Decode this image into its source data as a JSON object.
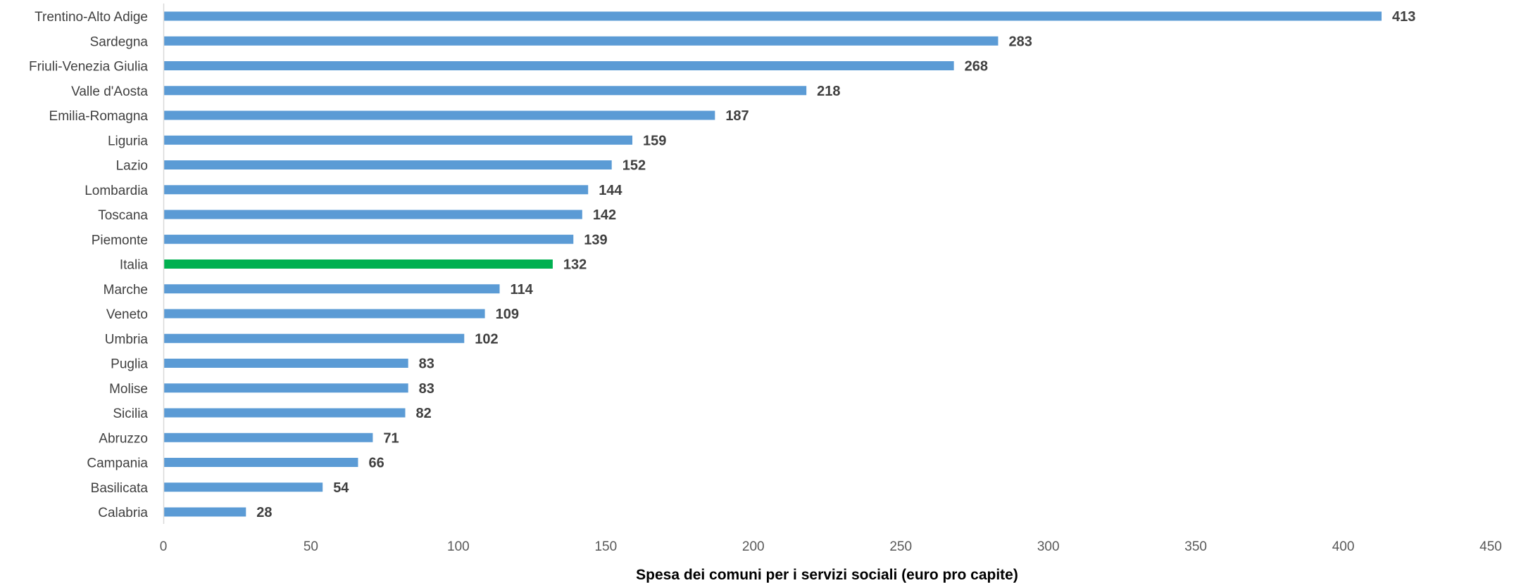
{
  "chart_data": {
    "type": "bar",
    "orientation": "horizontal",
    "categories": [
      "Trentino-Alto Adige",
      "Sardegna",
      "Friuli-Venezia Giulia",
      "Valle d'Aosta",
      "Emilia-Romagna",
      "Liguria",
      "Lazio",
      "Lombardia",
      "Toscana",
      "Piemonte",
      "Italia",
      "Marche",
      "Veneto",
      "Umbria",
      "Puglia",
      "Molise",
      "Sicilia",
      "Abruzzo",
      "Campania",
      "Basilicata",
      "Calabria"
    ],
    "values": [
      413,
      283,
      268,
      218,
      187,
      159,
      152,
      144,
      142,
      139,
      132,
      114,
      109,
      102,
      83,
      83,
      82,
      71,
      66,
      54,
      28
    ],
    "value_labels": [
      "413",
      "283",
      "268",
      "218",
      "187",
      "159",
      "152",
      "144",
      "142",
      "139",
      "132",
      "114",
      "109",
      "102",
      "83",
      "83",
      "82",
      "71",
      "66",
      "54",
      "28"
    ],
    "highlight_category": "Italia",
    "xlabel": "Spesa dei comuni per i servizi sociali (euro pro capite)",
    "ylabel": "",
    "xlim": [
      0,
      450
    ],
    "xticks": [
      "0",
      "50",
      "100",
      "150",
      "200",
      "250",
      "300",
      "350",
      "400",
      "450"
    ],
    "grid": false,
    "colors": {
      "bar": "#5b9bd5",
      "highlight": "#00b050",
      "axis": "#d9d9d9"
    }
  }
}
